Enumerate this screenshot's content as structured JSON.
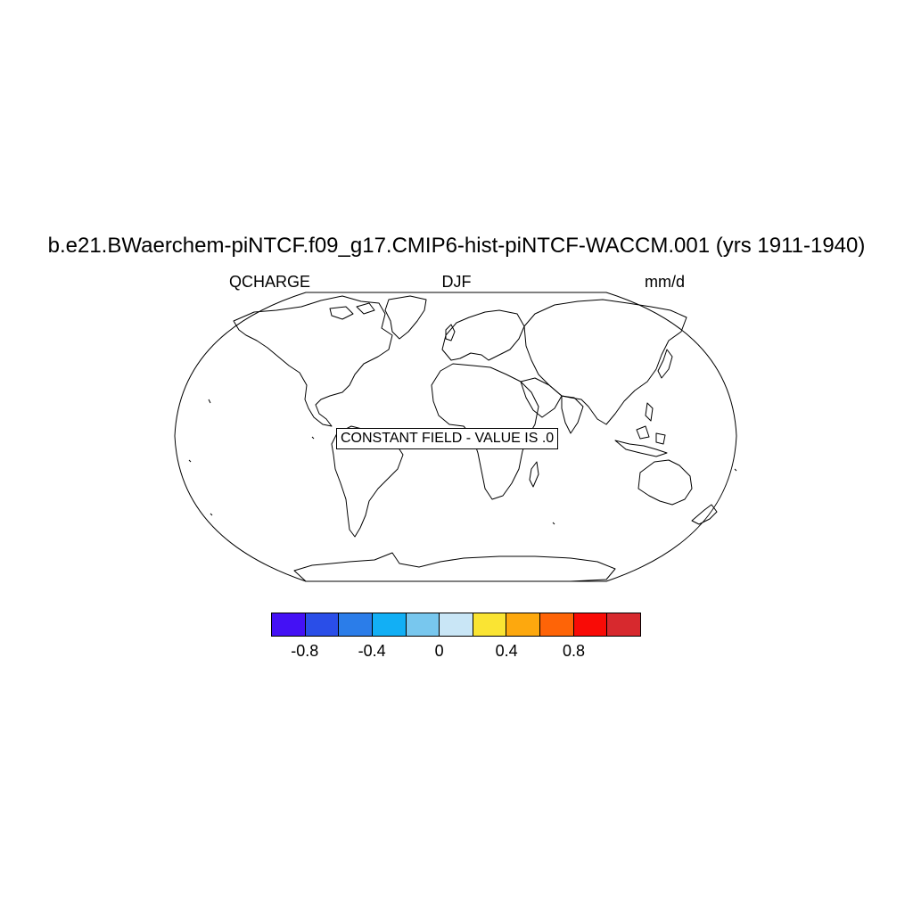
{
  "title": "b.e21.BWaerchem-piNTCF.f09_g17.CMIP6-hist-piNTCF-WACCM.001 (yrs 1911-1940)",
  "subtitle_left": "QCHARGE",
  "subtitle_center": "DJF",
  "subtitle_right": "mm/d",
  "map": {
    "projection": "robinson",
    "annotation": "CONSTANT FIELD - VALUE IS .0",
    "land_fill": "none",
    "coastline_color": "#000000"
  },
  "colorbar": {
    "colors": [
      "#4411f5",
      "#2a4ee8",
      "#2b7de9",
      "#12aff5",
      "#78c7ee",
      "#c9e6f6",
      "#fae433",
      "#fda80e",
      "#fe6407",
      "#f90b06",
      "#d7292e"
    ],
    "levels": [
      -1.0,
      -0.8,
      -0.6,
      -0.4,
      -0.2,
      0,
      0.2,
      0.4,
      0.6,
      0.8,
      1.0
    ],
    "labels": [
      {
        "text": "-0.8",
        "value": -0.8
      },
      {
        "text": "-0.4",
        "value": -0.4
      },
      {
        "text": "0",
        "value": 0
      },
      {
        "text": "0.4",
        "value": 0.4
      },
      {
        "text": "0.8",
        "value": 0.8
      }
    ]
  }
}
